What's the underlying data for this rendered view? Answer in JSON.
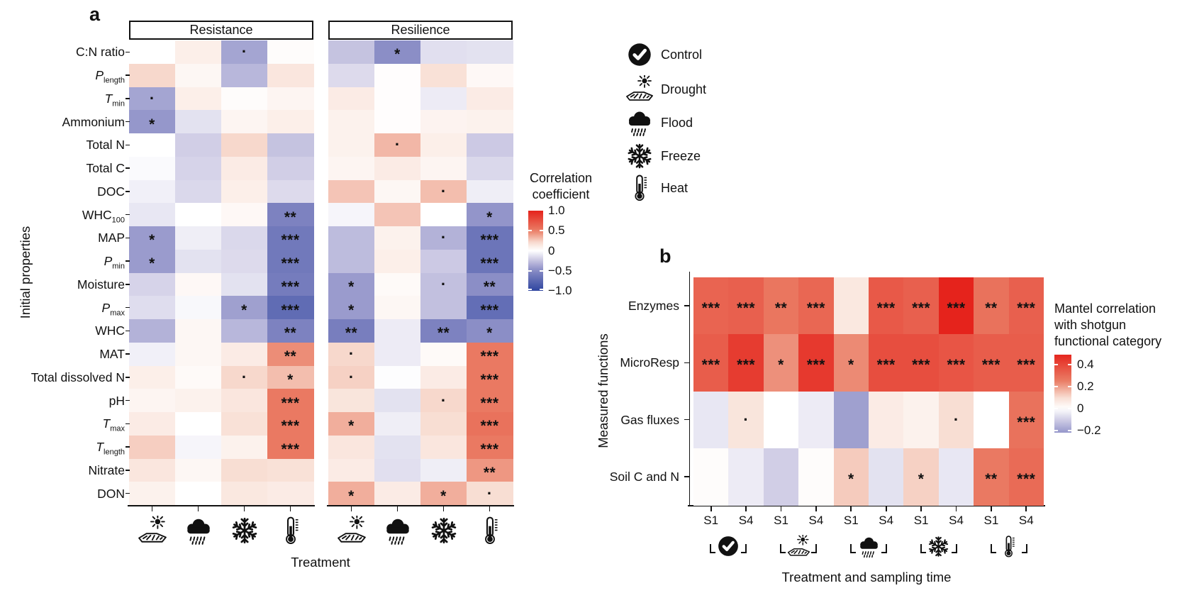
{
  "figure": {
    "panel_a_label": "a",
    "panel_b_label": "b"
  },
  "legend": {
    "items": [
      {
        "icon": "check-circle-icon",
        "label": "Control"
      },
      {
        "icon": "drought-icon",
        "label": "Drought"
      },
      {
        "icon": "flood-icon",
        "label": "Flood"
      },
      {
        "icon": "freeze-icon",
        "label": "Freeze"
      },
      {
        "icon": "heat-icon",
        "label": "Heat"
      }
    ]
  },
  "colors": {
    "positive_max": "#E5231C",
    "mid": "#FFFFFF",
    "negative_max": "#2F46A0",
    "text": "#111111"
  },
  "chart_data": [
    {
      "id": "panel_a",
      "type": "heatmap",
      "title": "a",
      "facets": [
        "Resistance",
        "Resilience"
      ],
      "xlabel": "Treatment",
      "ylabel": "Initial properties",
      "columns": [
        "Drought",
        "Flood",
        "Freeze",
        "Heat"
      ],
      "column_icons": [
        "drought-icon",
        "flood-icon",
        "freeze-icon",
        "heat-icon"
      ],
      "rows": [
        {
          "text": "C:N ratio"
        },
        {
          "text": "P",
          "italic": true,
          "sub": "length"
        },
        {
          "text": "T",
          "italic": true,
          "sub": "min"
        },
        {
          "text": "Ammonium"
        },
        {
          "text": "Total N"
        },
        {
          "text": "Total C"
        },
        {
          "text": "DOC"
        },
        {
          "text": "WHC",
          "sub": "100"
        },
        {
          "text": "MAP"
        },
        {
          "text": "P",
          "italic": true,
          "sub": "min"
        },
        {
          "text": "Moisture"
        },
        {
          "text": "P",
          "italic": true,
          "sub": "max"
        },
        {
          "text": "WHC"
        },
        {
          "text": "MAT"
        },
        {
          "text": "Total dissolved N"
        },
        {
          "text": "pH"
        },
        {
          "text": "T",
          "italic": true,
          "sub": "max"
        },
        {
          "text": "T",
          "italic": true,
          "sub": "length"
        },
        {
          "text": "Nitrate"
        },
        {
          "text": "DON"
        }
      ],
      "values": {
        "Resistance": [
          [
            0.0,
            0.1,
            -0.38,
            0.02
          ],
          [
            0.22,
            0.05,
            -0.3,
            0.15
          ],
          [
            -0.38,
            0.1,
            0.02,
            0.06
          ],
          [
            -0.44,
            -0.12,
            0.06,
            0.1
          ],
          [
            0.0,
            -0.2,
            0.22,
            -0.25
          ],
          [
            -0.02,
            -0.18,
            0.12,
            -0.2
          ],
          [
            -0.06,
            -0.16,
            0.1,
            -0.15
          ],
          [
            -0.1,
            0.0,
            0.04,
            -0.55
          ],
          [
            -0.42,
            -0.07,
            -0.16,
            -0.62
          ],
          [
            -0.42,
            -0.12,
            -0.15,
            -0.62
          ],
          [
            -0.18,
            0.04,
            -0.12,
            -0.6
          ],
          [
            -0.14,
            -0.03,
            -0.4,
            -0.72
          ],
          [
            -0.32,
            0.05,
            -0.3,
            -0.55
          ],
          [
            -0.06,
            0.05,
            0.12,
            0.45
          ],
          [
            0.1,
            0.03,
            0.22,
            0.3
          ],
          [
            0.06,
            0.08,
            0.15,
            0.52
          ],
          [
            0.12,
            0.0,
            0.18,
            0.52
          ],
          [
            0.25,
            -0.04,
            0.08,
            0.52
          ],
          [
            0.15,
            0.05,
            0.2,
            0.18
          ],
          [
            0.08,
            0.0,
            0.14,
            0.12
          ]
        ],
        "Resilience": [
          [
            -0.25,
            -0.48,
            -0.13,
            -0.12
          ],
          [
            -0.15,
            0.01,
            0.18,
            0.04
          ],
          [
            0.12,
            0.01,
            -0.08,
            0.12
          ],
          [
            0.08,
            0.01,
            0.07,
            0.08
          ],
          [
            0.08,
            0.32,
            0.1,
            -0.22
          ],
          [
            0.06,
            0.12,
            0.06,
            -0.16
          ],
          [
            0.28,
            0.05,
            0.3,
            -0.07
          ],
          [
            -0.04,
            0.28,
            0.0,
            -0.45
          ],
          [
            -0.28,
            0.08,
            -0.32,
            -0.65
          ],
          [
            -0.28,
            0.1,
            -0.22,
            -0.65
          ],
          [
            -0.42,
            0.03,
            -0.26,
            -0.48
          ],
          [
            -0.42,
            0.05,
            -0.26,
            -0.7
          ],
          [
            -0.58,
            -0.08,
            -0.55,
            -0.48
          ],
          [
            0.22,
            -0.08,
            0.03,
            0.52
          ],
          [
            0.24,
            -0.01,
            0.12,
            0.52
          ],
          [
            0.16,
            -0.12,
            0.22,
            0.52
          ],
          [
            0.35,
            -0.07,
            0.2,
            0.56
          ],
          [
            0.15,
            -0.12,
            0.15,
            0.52
          ],
          [
            0.12,
            -0.13,
            -0.07,
            0.42
          ],
          [
            0.35,
            0.12,
            0.35,
            0.2
          ]
        ]
      },
      "significance": {
        "Resistance": [
          [
            "",
            "",
            ".",
            ""
          ],
          [
            "",
            "",
            "",
            ""
          ],
          [
            ".",
            "",
            "",
            ""
          ],
          [
            "*",
            "",
            "",
            ""
          ],
          [
            "",
            "",
            "",
            ""
          ],
          [
            "",
            "",
            "",
            ""
          ],
          [
            "",
            "",
            "",
            ""
          ],
          [
            "",
            "",
            "",
            "**"
          ],
          [
            "*",
            "",
            "",
            "***"
          ],
          [
            "*",
            "",
            "",
            "***"
          ],
          [
            "",
            "",
            "",
            "***"
          ],
          [
            "",
            "",
            "*",
            "***"
          ],
          [
            "",
            "",
            "",
            "**"
          ],
          [
            "",
            "",
            "",
            "**"
          ],
          [
            "",
            "",
            ".",
            "*"
          ],
          [
            "",
            "",
            "",
            "***"
          ],
          [
            "",
            "",
            "",
            "***"
          ],
          [
            "",
            "",
            "",
            "***"
          ],
          [
            "",
            "",
            "",
            ""
          ],
          [
            "",
            "",
            "",
            ""
          ]
        ],
        "Resilience": [
          [
            "",
            "*",
            "",
            ""
          ],
          [
            "",
            "",
            "",
            ""
          ],
          [
            "",
            "",
            "",
            ""
          ],
          [
            "",
            "",
            "",
            ""
          ],
          [
            "",
            ".",
            "",
            ""
          ],
          [
            "",
            "",
            "",
            ""
          ],
          [
            "",
            "",
            ".",
            ""
          ],
          [
            "",
            "",
            "",
            "*"
          ],
          [
            "",
            "",
            ".",
            "***"
          ],
          [
            "",
            "",
            "",
            "***"
          ],
          [
            "*",
            "",
            ".",
            "**"
          ],
          [
            "*",
            "",
            "",
            "***"
          ],
          [
            "**",
            "",
            "**",
            "*"
          ],
          [
            ".",
            "",
            "",
            "***"
          ],
          [
            ".",
            "",
            "",
            "***"
          ],
          [
            "",
            "",
            ".",
            "***"
          ],
          [
            "*",
            "",
            "",
            "***"
          ],
          [
            "",
            "",
            "",
            "***"
          ],
          [
            "",
            "",
            "",
            "**"
          ],
          [
            "*",
            "",
            "*",
            "."
          ]
        ]
      },
      "colorbar": {
        "title_lines": [
          "Correlation",
          "coefficient"
        ],
        "domain": [
          1.0,
          -1.0
        ],
        "ticks": [
          {
            "v": 1.0,
            "label": "1.0"
          },
          {
            "v": 0.5,
            "label": "0.5"
          },
          {
            "v": 0.0,
            "label": "0"
          },
          {
            "v": -0.5,
            "label": "−0.5"
          },
          {
            "v": -1.0,
            "label": "−1.0"
          }
        ]
      }
    },
    {
      "id": "panel_b",
      "type": "heatmap",
      "title": "b",
      "xlabel": "Treatment and sampling time",
      "ylabel": "Measured functions",
      "rows": [
        "Enzymes",
        "MicroResp",
        "Gas fluxes",
        "Soil C and N"
      ],
      "column_groups": [
        {
          "label": "Control",
          "icon": "check-circle-icon",
          "cols": [
            "S1",
            "S4"
          ]
        },
        {
          "label": "Drought",
          "icon": "drought-icon",
          "cols": [
            "S1",
            "S4"
          ]
        },
        {
          "label": "Flood",
          "icon": "flood-icon",
          "cols": [
            "S1",
            "S4"
          ]
        },
        {
          "label": "Freeze",
          "icon": "freeze-icon",
          "cols": [
            "S1",
            "S4"
          ]
        },
        {
          "label": "Heat",
          "icon": "heat-icon",
          "cols": [
            "S1",
            "S4"
          ]
        }
      ],
      "values": [
        [
          0.32,
          0.33,
          0.27,
          0.31,
          0.07,
          0.35,
          0.33,
          0.5,
          0.28,
          0.33
        ],
        [
          0.34,
          0.43,
          0.22,
          0.44,
          0.23,
          0.38,
          0.38,
          0.36,
          0.34,
          0.34
        ],
        [
          -0.05,
          0.08,
          0.0,
          -0.04,
          -0.2,
          0.06,
          0.04,
          0.1,
          0.0,
          0.28
        ],
        [
          0.01,
          -0.04,
          -0.1,
          0.01,
          0.13,
          -0.06,
          0.12,
          -0.05,
          0.26,
          0.3
        ]
      ],
      "significance": [
        [
          "***",
          "***",
          "**",
          "***",
          "",
          "***",
          "***",
          "***",
          "**",
          "***"
        ],
        [
          "***",
          "***",
          "*",
          "***",
          "*",
          "***",
          "***",
          "***",
          "***",
          "***"
        ],
        [
          "",
          ".",
          "",
          "",
          "",
          "",
          "",
          ".",
          "",
          "***"
        ],
        [
          "",
          "",
          "",
          "",
          "*",
          "",
          "*",
          "",
          "**",
          "***"
        ]
      ],
      "value_scale_to_shared_colormap": 2.0,
      "colorbar": {
        "title_lines": [
          "Mantel correlation",
          "with shotgun",
          "functional category"
        ],
        "domain": [
          0.49,
          -0.22
        ],
        "ticks": [
          {
            "v": 0.4,
            "label": "0.4"
          },
          {
            "v": 0.2,
            "label": "0.2"
          },
          {
            "v": 0.0,
            "label": "0"
          },
          {
            "v": -0.2,
            "label": "−0.2"
          }
        ]
      }
    }
  ]
}
